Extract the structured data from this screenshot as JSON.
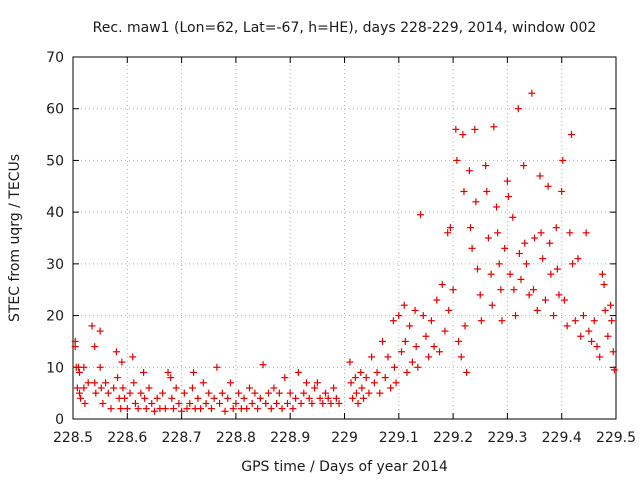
{
  "chart_data": {
    "type": "scatter",
    "title": "Rec. maw1 (Lon=62, Lat=-67, h=HE), days 228-229, 2014, window 002",
    "xlabel": "GPS time / Days of year 2014",
    "ylabel": "STEC from uqrg / TECUs",
    "xlim": [
      228.5,
      229.5
    ],
    "ylim": [
      0,
      70
    ],
    "xticks": [
      "228.5",
      "228.6",
      "228.7",
      "228.8",
      "228.9",
      "229",
      "229.1",
      "229.2",
      "229.3",
      "229.4",
      "229.5"
    ],
    "yticks": [
      "0",
      "10",
      "20",
      "30",
      "40",
      "50",
      "60",
      "70"
    ],
    "grid": true,
    "marker": "+",
    "color": "#e00000",
    "points": [
      [
        228.504,
        15
      ],
      [
        228.504,
        14
      ],
      [
        228.506,
        10
      ],
      [
        228.508,
        6
      ],
      [
        228.51,
        10
      ],
      [
        228.512,
        9
      ],
      [
        228.512,
        5
      ],
      [
        228.514,
        4
      ],
      [
        228.52,
        10
      ],
      [
        228.52,
        6
      ],
      [
        228.522,
        3
      ],
      [
        228.528,
        7
      ],
      [
        228.535,
        18
      ],
      [
        228.54,
        14
      ],
      [
        228.54,
        7
      ],
      [
        228.542,
        5
      ],
      [
        228.55,
        17
      ],
      [
        228.55,
        10
      ],
      [
        228.552,
        6
      ],
      [
        228.555,
        3
      ],
      [
        228.56,
        7
      ],
      [
        228.565,
        5
      ],
      [
        228.57,
        2
      ],
      [
        228.575,
        6
      ],
      [
        228.58,
        13
      ],
      [
        228.582,
        8
      ],
      [
        228.585,
        4
      ],
      [
        228.588,
        2
      ],
      [
        228.59,
        11
      ],
      [
        228.592,
        6
      ],
      [
        228.595,
        4
      ],
      [
        228.6,
        2
      ],
      [
        228.605,
        5
      ],
      [
        228.61,
        12
      ],
      [
        228.612,
        7
      ],
      [
        228.615,
        3
      ],
      [
        228.62,
        2
      ],
      [
        228.625,
        5
      ],
      [
        228.63,
        9
      ],
      [
        228.632,
        4
      ],
      [
        228.635,
        2
      ],
      [
        228.64,
        6
      ],
      [
        228.645,
        3
      ],
      [
        228.65,
        1.5
      ],
      [
        228.655,
        4
      ],
      [
        228.66,
        2
      ],
      [
        228.665,
        5
      ],
      [
        228.67,
        2
      ],
      [
        228.675,
        9
      ],
      [
        228.68,
        8
      ],
      [
        228.682,
        4
      ],
      [
        228.685,
        2
      ],
      [
        228.69,
        6
      ],
      [
        228.695,
        3
      ],
      [
        228.7,
        1.5
      ],
      [
        228.705,
        5
      ],
      [
        228.71,
        2
      ],
      [
        228.715,
        3
      ],
      [
        228.72,
        6
      ],
      [
        228.722,
        9
      ],
      [
        228.725,
        2
      ],
      [
        228.73,
        4
      ],
      [
        228.735,
        2
      ],
      [
        228.74,
        7
      ],
      [
        228.745,
        3
      ],
      [
        228.75,
        5
      ],
      [
        228.755,
        2
      ],
      [
        228.76,
        4
      ],
      [
        228.765,
        10
      ],
      [
        228.77,
        3
      ],
      [
        228.775,
        5
      ],
      [
        228.78,
        1.5
      ],
      [
        228.785,
        4
      ],
      [
        228.79,
        7
      ],
      [
        228.795,
        2
      ],
      [
        228.8,
        3
      ],
      [
        228.805,
        5
      ],
      [
        228.81,
        2
      ],
      [
        228.815,
        4
      ],
      [
        228.82,
        2
      ],
      [
        228.825,
        6
      ],
      [
        228.83,
        3
      ],
      [
        228.835,
        5
      ],
      [
        228.84,
        2
      ],
      [
        228.845,
        4
      ],
      [
        228.85,
        10.5
      ],
      [
        228.855,
        3
      ],
      [
        228.86,
        5
      ],
      [
        228.865,
        2
      ],
      [
        228.87,
        6
      ],
      [
        228.875,
        3
      ],
      [
        228.88,
        5
      ],
      [
        228.885,
        2
      ],
      [
        228.89,
        8
      ],
      [
        228.895,
        3
      ],
      [
        228.9,
        5
      ],
      [
        228.905,
        2
      ],
      [
        228.91,
        4
      ],
      [
        228.915,
        9
      ],
      [
        228.92,
        3
      ],
      [
        228.925,
        5
      ],
      [
        228.93,
        7
      ],
      [
        228.935,
        4
      ],
      [
        228.94,
        3
      ],
      [
        228.945,
        6
      ],
      [
        228.95,
        7
      ],
      [
        228.955,
        4
      ],
      [
        228.96,
        3
      ],
      [
        228.965,
        5
      ],
      [
        228.97,
        4
      ],
      [
        228.975,
        3
      ],
      [
        228.98,
        6
      ],
      [
        228.985,
        4
      ],
      [
        228.99,
        3
      ],
      [
        229.01,
        11
      ],
      [
        229.012,
        7
      ],
      [
        229.015,
        4
      ],
      [
        229.02,
        8
      ],
      [
        229.022,
        5
      ],
      [
        229.025,
        3
      ],
      [
        229.03,
        9
      ],
      [
        229.032,
        6
      ],
      [
        229.035,
        4
      ],
      [
        229.04,
        8
      ],
      [
        229.045,
        5
      ],
      [
        229.05,
        12
      ],
      [
        229.055,
        7
      ],
      [
        229.06,
        9
      ],
      [
        229.065,
        5
      ],
      [
        229.07,
        15
      ],
      [
        229.075,
        8
      ],
      [
        229.08,
        12
      ],
      [
        229.085,
        6
      ],
      [
        229.09,
        19
      ],
      [
        229.092,
        10
      ],
      [
        229.095,
        7
      ],
      [
        229.1,
        20
      ],
      [
        229.105,
        13
      ],
      [
        229.11,
        22
      ],
      [
        229.112,
        15
      ],
      [
        229.115,
        9
      ],
      [
        229.12,
        18
      ],
      [
        229.125,
        11
      ],
      [
        229.13,
        21
      ],
      [
        229.132,
        14
      ],
      [
        229.135,
        10
      ],
      [
        229.14,
        39.5
      ],
      [
        229.145,
        20
      ],
      [
        229.15,
        16
      ],
      [
        229.155,
        12
      ],
      [
        229.16,
        19
      ],
      [
        229.165,
        14
      ],
      [
        229.17,
        23
      ],
      [
        229.175,
        13
      ],
      [
        229.18,
        26
      ],
      [
        229.185,
        17
      ],
      [
        229.19,
        36
      ],
      [
        229.192,
        21
      ],
      [
        229.195,
        37
      ],
      [
        229.2,
        25
      ],
      [
        229.205,
        56
      ],
      [
        229.207,
        50
      ],
      [
        229.21,
        15
      ],
      [
        229.215,
        12
      ],
      [
        229.218,
        55
      ],
      [
        229.22,
        44
      ],
      [
        229.222,
        18
      ],
      [
        229.225,
        9
      ],
      [
        229.23,
        48
      ],
      [
        229.232,
        37
      ],
      [
        229.235,
        33
      ],
      [
        229.24,
        56
      ],
      [
        229.242,
        42
      ],
      [
        229.245,
        29
      ],
      [
        229.25,
        24
      ],
      [
        229.252,
        19
      ],
      [
        229.26,
        49
      ],
      [
        229.262,
        44
      ],
      [
        229.265,
        35
      ],
      [
        229.27,
        28
      ],
      [
        229.272,
        22
      ],
      [
        229.275,
        56.5
      ],
      [
        229.28,
        41
      ],
      [
        229.282,
        36
      ],
      [
        229.285,
        30
      ],
      [
        229.288,
        25
      ],
      [
        229.29,
        19
      ],
      [
        229.295,
        33
      ],
      [
        229.3,
        46
      ],
      [
        229.302,
        43
      ],
      [
        229.305,
        28
      ],
      [
        229.31,
        39
      ],
      [
        229.312,
        25
      ],
      [
        229.315,
        20
      ],
      [
        229.32,
        60
      ],
      [
        229.322,
        32
      ],
      [
        229.325,
        27
      ],
      [
        229.33,
        49
      ],
      [
        229.332,
        34
      ],
      [
        229.335,
        30
      ],
      [
        229.34,
        24
      ],
      [
        229.345,
        63
      ],
      [
        229.348,
        25
      ],
      [
        229.35,
        35
      ],
      [
        229.355,
        21
      ],
      [
        229.36,
        47
      ],
      [
        229.362,
        36
      ],
      [
        229.365,
        31
      ],
      [
        229.37,
        23
      ],
      [
        229.375,
        45
      ],
      [
        229.378,
        34
      ],
      [
        229.38,
        28
      ],
      [
        229.385,
        20
      ],
      [
        229.39,
        37
      ],
      [
        229.392,
        29
      ],
      [
        229.395,
        24
      ],
      [
        229.4,
        44
      ],
      [
        229.402,
        50
      ],
      [
        229.405,
        23
      ],
      [
        229.41,
        18
      ],
      [
        229.415,
        36
      ],
      [
        229.418,
        55
      ],
      [
        229.42,
        30
      ],
      [
        229.425,
        19
      ],
      [
        229.43,
        31
      ],
      [
        229.435,
        16
      ],
      [
        229.44,
        20
      ],
      [
        229.445,
        36
      ],
      [
        229.45,
        17
      ],
      [
        229.455,
        15
      ],
      [
        229.46,
        19
      ],
      [
        229.465,
        14
      ],
      [
        229.47,
        12
      ],
      [
        229.475,
        28
      ],
      [
        229.478,
        26
      ],
      [
        229.48,
        21
      ],
      [
        229.485,
        16
      ],
      [
        229.49,
        22
      ],
      [
        229.492,
        19
      ],
      [
        229.495,
        13
      ],
      [
        229.497,
        9.5
      ]
    ]
  }
}
